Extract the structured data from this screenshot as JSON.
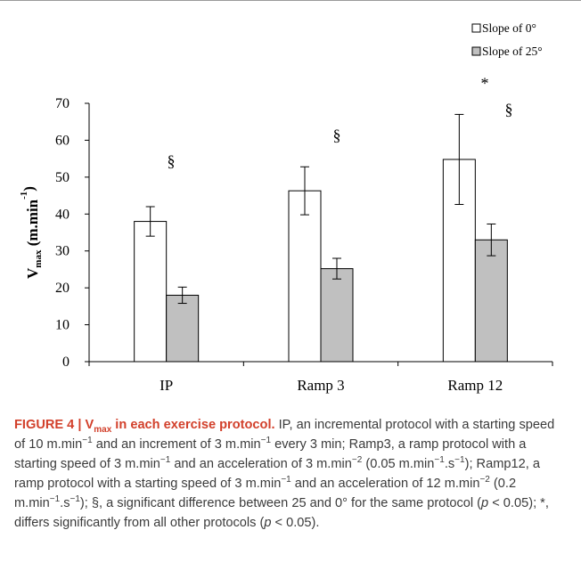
{
  "chart_data": {
    "type": "bar",
    "categories": [
      "IP",
      "Ramp 3",
      "Ramp 12"
    ],
    "series": [
      {
        "name": "Slope of  0°",
        "values": [
          38,
          46.3,
          54.8
        ],
        "error": [
          4,
          6.5,
          12.2
        ],
        "color": "#ffffff"
      },
      {
        "name": "Slope of 25°",
        "values": [
          18,
          25.2,
          33
        ],
        "error": [
          2.2,
          2.8,
          4.3
        ],
        "color": "#c0c0c0"
      }
    ],
    "ylabel_main": "V",
    "ylabel_sub": "max",
    "ylabel_unit": "(m.min",
    "ylabel_exp": "-1",
    "ylabel_close": ")",
    "ylim": [
      0,
      70
    ],
    "yticks": [
      0,
      10,
      20,
      30,
      40,
      50,
      60,
      70
    ],
    "legend_position": "top-right",
    "grid": false,
    "annotations": [
      {
        "category": "IP",
        "text": "§"
      },
      {
        "category": "Ramp 3",
        "text": "§"
      },
      {
        "category": "Ramp 12",
        "text": "§"
      },
      {
        "category": "Ramp 12",
        "text": "*"
      }
    ]
  },
  "caption": {
    "figure_label": "FIGURE 4 | V",
    "figure_label_sub": "max",
    "figure_label_tail": " in each exercise protocol.",
    "t1": " IP, an incremental protocol with a starting speed of 10 m.min",
    "e1": "−1",
    "t2": " and an increment of 3 m.min",
    "e2": "−1",
    "t3": " every 3 min; Ramp3, a ramp protocol with a starting speed of 3 m.min",
    "e3": "−1",
    "t4": " and an acceleration of 3 m.min",
    "e4": "−2",
    "t5": " (0.05 m.min",
    "e5": "−1",
    "t6": ".s",
    "e6": "−1",
    "t7": "); Ramp12, a ramp protocol with a starting speed of 3 m.min",
    "e7": "−1",
    "t8": " and an acceleration of 12 m.min",
    "e8": "−2",
    "t9": " (0.2 m.min",
    "e9": "−1",
    "t10": ".s",
    "e10": "−1",
    "t11": "); §, a significant difference between 25 and 0° for the same protocol (",
    "p1": "p",
    "t12": " < 0.05); *, differs significantly from all other protocols (",
    "p2": "p",
    "t13": " < 0.05)."
  }
}
